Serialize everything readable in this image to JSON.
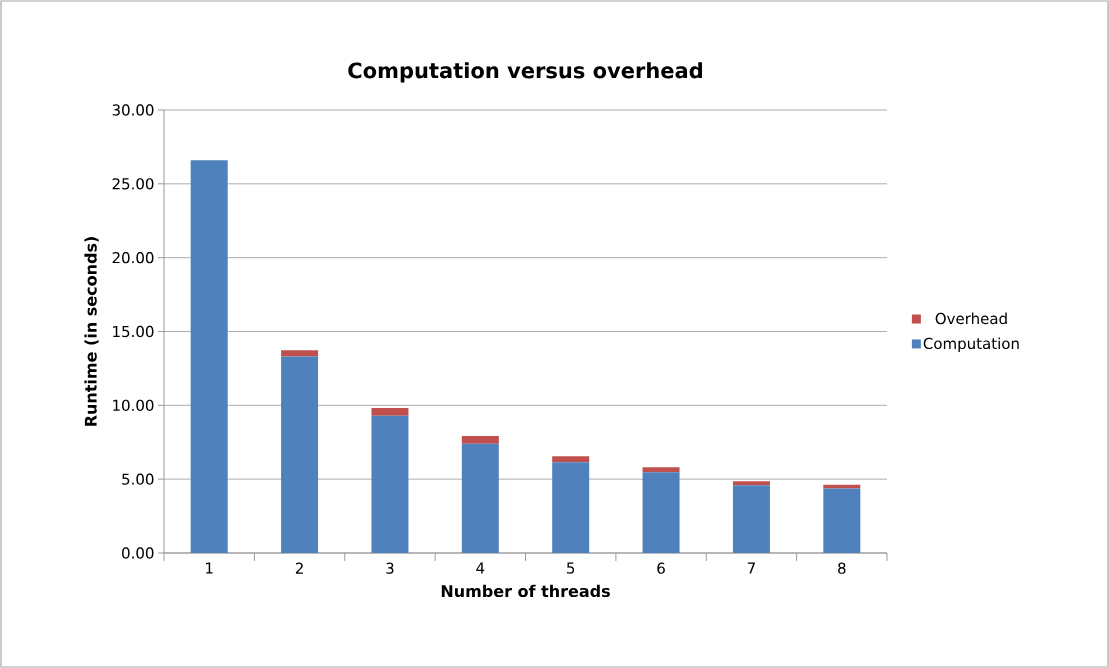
{
  "chart_data": {
    "type": "bar",
    "title": "Computation versus overhead",
    "xlabel": "Number of threads",
    "ylabel": "Runtime (in seconds)",
    "categories": [
      "1",
      "2",
      "3",
      "4",
      "5",
      "6",
      "7",
      "8"
    ],
    "stacked": true,
    "series": [
      {
        "name": "Computation",
        "color": "#4f81bd",
        "values": [
          26.6,
          13.3,
          9.3,
          7.4,
          6.15,
          5.47,
          4.59,
          4.37
        ]
      },
      {
        "name": "Overhead",
        "color": "#c0504d",
        "values": [
          0,
          0.43,
          0.52,
          0.52,
          0.4,
          0.34,
          0.27,
          0.25
        ]
      }
    ],
    "ylim": [
      0,
      30
    ],
    "yticks": [
      {
        "value": 0,
        "label": "0.00"
      },
      {
        "value": 5,
        "label": "5.00"
      },
      {
        "value": 10,
        "label": "10.00"
      },
      {
        "value": 15,
        "label": "15.00"
      },
      {
        "value": 20,
        "label": "20.00"
      },
      {
        "value": 25,
        "label": "25.00"
      },
      {
        "value": 30,
        "label": "30.00"
      }
    ],
    "grid": "y",
    "legend": "right"
  }
}
